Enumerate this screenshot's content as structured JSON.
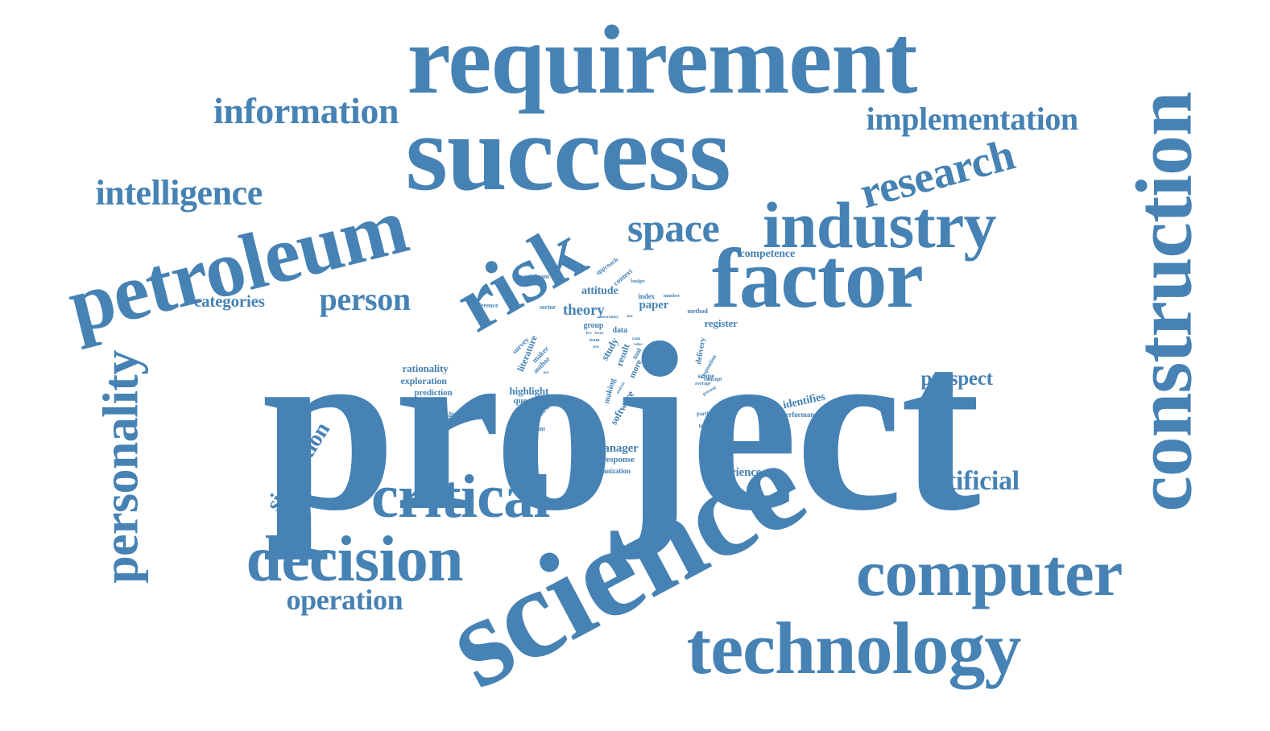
{
  "theme": {
    "word_color": "#4682b4",
    "background": "#ffffff"
  },
  "words": [
    {
      "text": "project",
      "weight": 1.0
    },
    {
      "text": "science",
      "weight": 0.62
    },
    {
      "text": "success",
      "weight": 0.6
    },
    {
      "text": "requirement",
      "weight": 0.52
    },
    {
      "text": "construction",
      "weight": 0.42
    },
    {
      "text": "risk",
      "weight": 0.41
    },
    {
      "text": "factor",
      "weight": 0.4
    },
    {
      "text": "technology",
      "weight": 0.39
    },
    {
      "text": "petroleum",
      "weight": 0.37
    },
    {
      "text": "industry",
      "weight": 0.36
    },
    {
      "text": "computer",
      "weight": 0.35
    },
    {
      "text": "decision",
      "weight": 0.34
    },
    {
      "text": "critical",
      "weight": 0.33
    },
    {
      "text": "personality",
      "weight": 0.3
    },
    {
      "text": "research",
      "weight": 0.27
    },
    {
      "text": "space",
      "weight": 0.24
    },
    {
      "text": "information",
      "weight": 0.23
    },
    {
      "text": "intelligence",
      "weight": 0.22
    },
    {
      "text": "implementation",
      "weight": 0.21
    },
    {
      "text": "person",
      "weight": 0.2
    },
    {
      "text": "artificial",
      "weight": 0.18
    },
    {
      "text": "operation",
      "weight": 0.18
    },
    {
      "text": "simulation",
      "weight": 0.16
    },
    {
      "text": "prospect",
      "weight": 0.14
    },
    {
      "text": "categories",
      "weight": 0.12
    },
    {
      "text": "theory",
      "weight": 0.11
    },
    {
      "text": "competence",
      "weight": 0.1
    },
    {
      "text": "attitude",
      "weight": 0.1
    },
    {
      "text": "paper",
      "weight": 0.1
    },
    {
      "text": "identifies",
      "weight": 0.1
    },
    {
      "text": "experience",
      "weight": 0.1
    },
    {
      "text": "manager",
      "weight": 0.1
    },
    {
      "text": "register",
      "weight": 0.09
    },
    {
      "text": "rationality",
      "weight": 0.09
    },
    {
      "text": "exploration",
      "weight": 0.09
    },
    {
      "text": "highlight",
      "weight": 0.09
    },
    {
      "text": "software",
      "weight": 0.09
    },
    {
      "text": "literature",
      "weight": 0.08
    },
    {
      "text": "study",
      "weight": 0.08
    },
    {
      "text": "result",
      "weight": 0.08
    },
    {
      "text": "more",
      "weight": 0.08
    },
    {
      "text": "prediction",
      "weight": 0.08
    },
    {
      "text": "question",
      "weight": 0.08
    },
    {
      "text": "response",
      "weight": 0.08
    },
    {
      "text": "making",
      "weight": 0.07
    },
    {
      "text": "delivery",
      "weight": 0.07
    },
    {
      "text": "elicitation",
      "weight": 0.07
    },
    {
      "text": "understanding",
      "weight": 0.07
    },
    {
      "text": "behaviour",
      "weight": 0.07
    },
    {
      "text": "survey",
      "weight": 0.07
    },
    {
      "text": "maker",
      "weight": 0.07
    },
    {
      "text": "author",
      "weight": 0.07
    },
    {
      "text": "group",
      "weight": 0.07
    },
    {
      "text": "data",
      "weight": 0.07
    },
    {
      "text": "index",
      "weight": 0.07
    },
    {
      "text": "scope",
      "weight": 0.07
    },
    {
      "text": "organization",
      "weight": 0.06
    },
    {
      "text": "performance",
      "weight": 0.06
    },
    {
      "text": "context",
      "weight": 0.06
    },
    {
      "text": "tool",
      "weight": 0.06
    },
    {
      "text": "sector",
      "weight": 0.05
    },
    {
      "text": "reference",
      "weight": 0.05
    },
    {
      "text": "participant",
      "weight": 0.05
    },
    {
      "text": "approach",
      "weight": 0.05
    },
    {
      "text": "method",
      "weight": 0.05
    },
    {
      "text": "important",
      "weight": 0.05
    },
    {
      "text": "hypothesi",
      "weight": 0.05
    },
    {
      "text": "economic",
      "weight": 0.05
    },
    {
      "text": "particular",
      "weight": 0.05
    },
    {
      "text": "technique",
      "weight": 0.05
    },
    {
      "text": "concept",
      "weight": 0.05
    },
    {
      "text": "respondent",
      "weight": 0.05
    },
    {
      "text": "present",
      "weight": 0.04
    },
    {
      "text": "average",
      "weight": 0.04
    },
    {
      "text": "team",
      "weight": 0.04
    },
    {
      "text": "budget",
      "weight": 0.04
    },
    {
      "text": "number",
      "weight": 0.04
    },
    {
      "text": "rank",
      "weight": 0.04
    },
    {
      "text": "few",
      "weight": 0.04
    },
    {
      "text": "focus",
      "weight": 0.04
    },
    {
      "text": "text",
      "weight": 0.04
    },
    {
      "text": "analysis",
      "weight": 0.04
    },
    {
      "text": "use",
      "weight": 0.04
    },
    {
      "text": "value",
      "weight": 0.04
    },
    {
      "text": "size",
      "weight": 0.04
    },
    {
      "text": "uncertainty",
      "weight": 0.04
    }
  ]
}
